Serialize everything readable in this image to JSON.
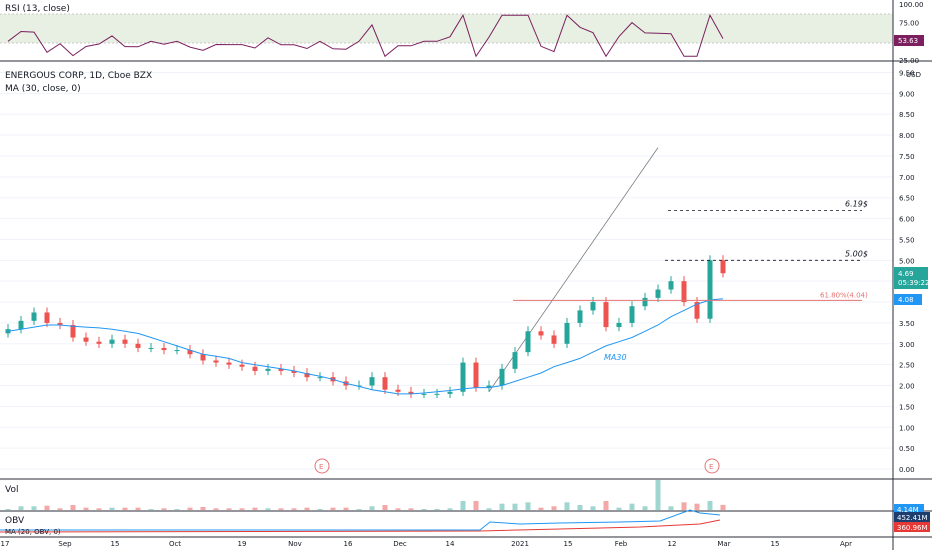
{
  "rsi": {
    "label": "RSI (13, close)",
    "value_label": "53.63",
    "ticks": [
      "100.00",
      "75.00",
      "50.00",
      "25.00"
    ]
  },
  "main": {
    "title": "ENERGOUS CORP, 1D, Cboe BZX",
    "ma_label": "MA (30, close, 0)",
    "currency": "USD",
    "price_ticks": [
      "9.50",
      "9.00",
      "8.50",
      "8.00",
      "7.50",
      "7.00",
      "6.50",
      "6.00",
      "5.50",
      "5.00",
      "4.50",
      "4.00",
      "3.50",
      "3.00",
      "2.50",
      "2.00",
      "1.50",
      "1.00",
      "0.50",
      "0.00"
    ],
    "last_price": "4.69",
    "countdown": "05:39:22",
    "ma_value": "4.08",
    "ma_tag": "MA30",
    "level_high": "6.19$",
    "level_mid": "5.00$",
    "fib_label": "61.80%(4.04)",
    "earnings_mark": "E"
  },
  "volume": {
    "label": "Vol",
    "value": "4.14M"
  },
  "obv": {
    "label": "OBV",
    "sublabel": "MA (20, OBV, 0)",
    "value_a": "452.41M",
    "value_b": "360.96M"
  },
  "x_ticks": [
    "17",
    "Sep",
    "15",
    "Oct",
    "19",
    "Nov",
    "16",
    "Dec",
    "14",
    "2021",
    "15",
    "Feb",
    "12",
    "Mar",
    "15",
    "Apr",
    "19"
  ],
  "chart_data": {
    "type": "candlestick",
    "title": "ENERGOUS CORP, 1D, Cboe BZX",
    "ylim": [
      0,
      9.6
    ],
    "dates": [
      "2020-08-17",
      "2020-08-19",
      "2020-08-21",
      "2020-08-25",
      "2020-08-27",
      "2020-08-31",
      "2020-09-03",
      "2020-09-08",
      "2020-09-10",
      "2020-09-15",
      "2020-09-17",
      "2020-09-21",
      "2020-09-23",
      "2020-09-28",
      "2020-10-01",
      "2020-10-05",
      "2020-10-08",
      "2020-10-13",
      "2020-10-16",
      "2020-10-20",
      "2020-10-23",
      "2020-10-28",
      "2020-11-02",
      "2020-11-05",
      "2020-11-10",
      "2020-11-13",
      "2020-11-18",
      "2020-11-23",
      "2020-11-30",
      "2020-12-03",
      "2020-12-08",
      "2020-12-11",
      "2020-12-16",
      "2020-12-21",
      "2020-12-24",
      "2020-12-30",
      "2021-01-05",
      "2021-01-07",
      "2021-01-11",
      "2021-01-13",
      "2021-01-15",
      "2021-01-20",
      "2021-01-22",
      "2021-01-26",
      "2021-01-28",
      "2021-02-01",
      "2021-02-03",
      "2021-02-05",
      "2021-02-09",
      "2021-02-11",
      "2021-02-16",
      "2021-02-18",
      "2021-02-22",
      "2021-02-24",
      "2021-02-26",
      "2021-03-01"
    ],
    "close": [
      3.35,
      3.55,
      3.75,
      3.5,
      3.45,
      3.15,
      3.05,
      3.0,
      3.1,
      3.0,
      2.9,
      2.9,
      2.85,
      2.85,
      2.75,
      2.6,
      2.55,
      2.5,
      2.45,
      2.35,
      2.4,
      2.35,
      2.3,
      2.2,
      2.2,
      2.1,
      2.0,
      2.0,
      2.2,
      1.9,
      1.85,
      1.8,
      1.8,
      1.8,
      1.85,
      2.55,
      1.95,
      2.0,
      2.4,
      2.8,
      3.3,
      3.2,
      3.0,
      3.5,
      3.8,
      4.0,
      3.4,
      3.5,
      3.9,
      4.1,
      4.3,
      4.5,
      4.0,
      3.6,
      5.0,
      4.69
    ],
    "ma30": [
      3.3,
      3.35,
      3.4,
      3.45,
      3.45,
      3.42,
      3.4,
      3.38,
      3.35,
      3.3,
      3.25,
      3.15,
      3.05,
      2.95,
      2.85,
      2.75,
      2.7,
      2.65,
      2.55,
      2.5,
      2.45,
      2.4,
      2.35,
      2.28,
      2.22,
      2.15,
      2.05,
      1.98,
      1.9,
      1.85,
      1.8,
      1.8,
      1.82,
      1.85,
      1.88,
      1.92,
      1.95,
      1.95,
      2.0,
      2.1,
      2.2,
      2.3,
      2.45,
      2.55,
      2.65,
      2.8,
      2.95,
      3.05,
      3.15,
      3.3,
      3.45,
      3.65,
      3.8,
      3.95,
      4.05,
      4.08
    ],
    "levels": [
      {
        "label": "6.19$",
        "value": 6.19
      },
      {
        "label": "5.00$",
        "value": 5.0
      },
      {
        "label": "61.80%(4.04)",
        "value": 4.04
      }
    ],
    "rsi_ylim": [
      25,
      100
    ],
    "rsi_last": 53.63
  }
}
